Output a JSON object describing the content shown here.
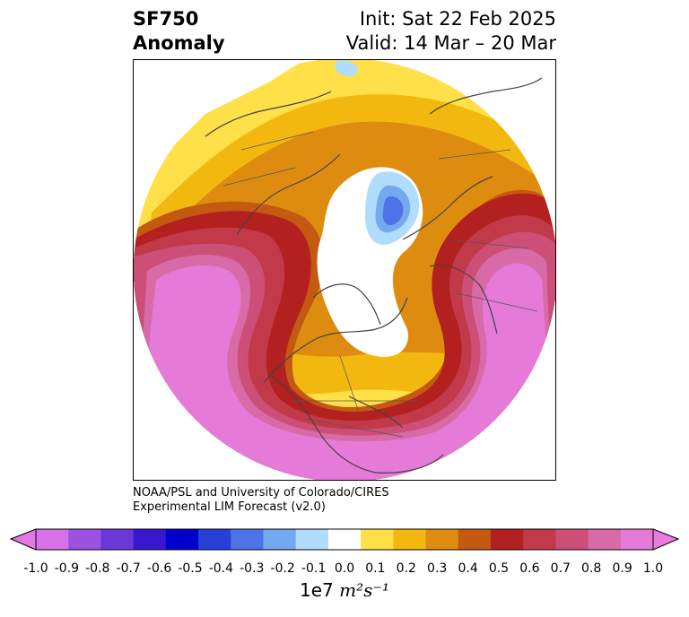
{
  "title": {
    "variable": "SF750",
    "subtitle": "Anomaly",
    "init": "Init: Sat 22 Feb 2025",
    "valid": "Valid: 14 Mar – 20 Mar"
  },
  "credit": {
    "line1": "NOAA/PSL and University of Colorado/CIRES",
    "line2": "Experimental LIM Forecast (v2.0)"
  },
  "colorbar": {
    "units_prefix": "1e7",
    "units_suffix": "m²s⁻¹",
    "tick_labels": [
      "-1.0",
      "-0.9",
      "-0.8",
      "-0.7",
      "-0.6",
      "-0.5",
      "-0.4",
      "-0.3",
      "-0.2",
      "-0.1",
      "0.0",
      "0.1",
      "0.2",
      "0.3",
      "0.4",
      "0.5",
      "0.6",
      "0.7",
      "0.8",
      "0.9",
      "1.0"
    ],
    "colors": [
      "#d772e8",
      "#9b52e0",
      "#6a38d8",
      "#3718d0",
      "#0000cc",
      "#2640d8",
      "#4d73e6",
      "#74a9ef",
      "#b0ddfb",
      "#ffffff",
      "#ffe048",
      "#f3b810",
      "#de8c10",
      "#c45a12",
      "#b22020",
      "#c2394a",
      "#cc4f78",
      "#d86aa8",
      "#e67ad8"
    ],
    "under_color": "#e37ae1",
    "over_color": "#e87bdc"
  },
  "map": {
    "projection": "north-polar-stereographic",
    "feature": "coastlines-and-borders"
  }
}
